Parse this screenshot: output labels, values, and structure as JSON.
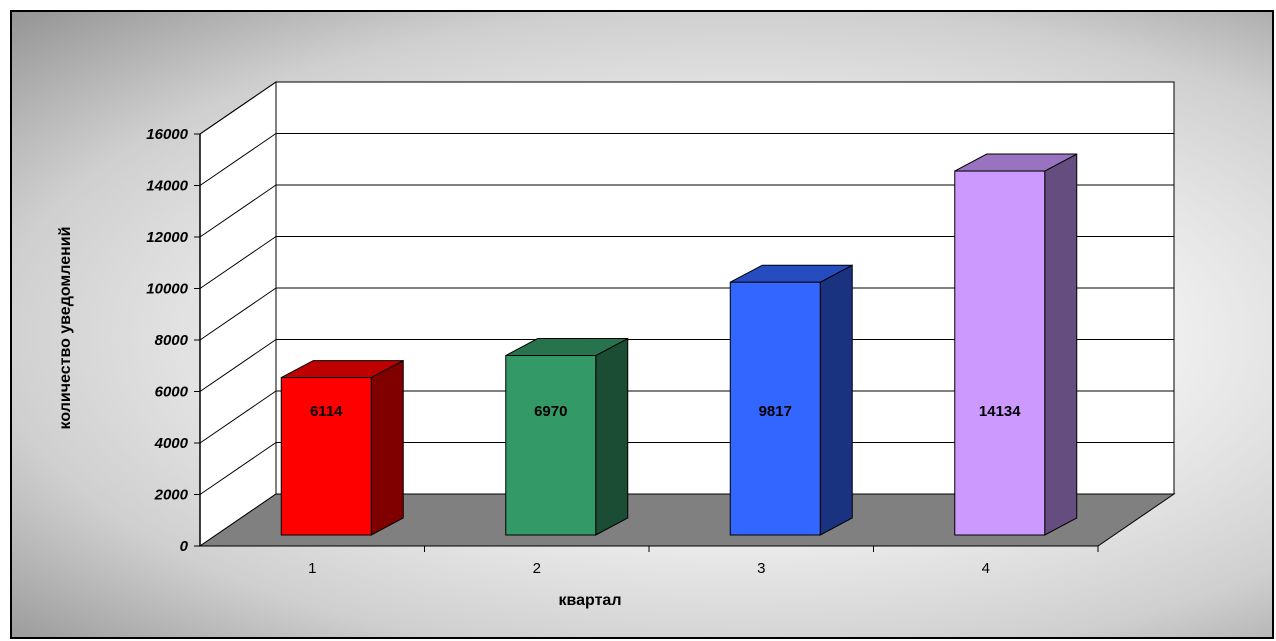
{
  "chart_data": {
    "type": "bar",
    "variant": "3d-column",
    "categories": [
      "1",
      "2",
      "3",
      "4"
    ],
    "values": [
      6114,
      6970,
      9817,
      14134
    ],
    "data_labels": [
      "6114",
      "6970",
      "9817",
      "14134"
    ],
    "colors": [
      "#ff0000",
      "#339966",
      "#3366ff",
      "#cc99ff"
    ],
    "xlabel": "квартал",
    "ylabel": "количество уведомлений",
    "ylim": [
      0,
      16000
    ],
    "yticks": [
      0,
      2000,
      4000,
      6000,
      8000,
      10000,
      12000,
      14000,
      16000
    ],
    "ytick_labels": [
      "0",
      "2000",
      "4000",
      "6000",
      "8000",
      "10000",
      "12000",
      "14000",
      "16000"
    ],
    "grid": true,
    "legend": "none"
  }
}
